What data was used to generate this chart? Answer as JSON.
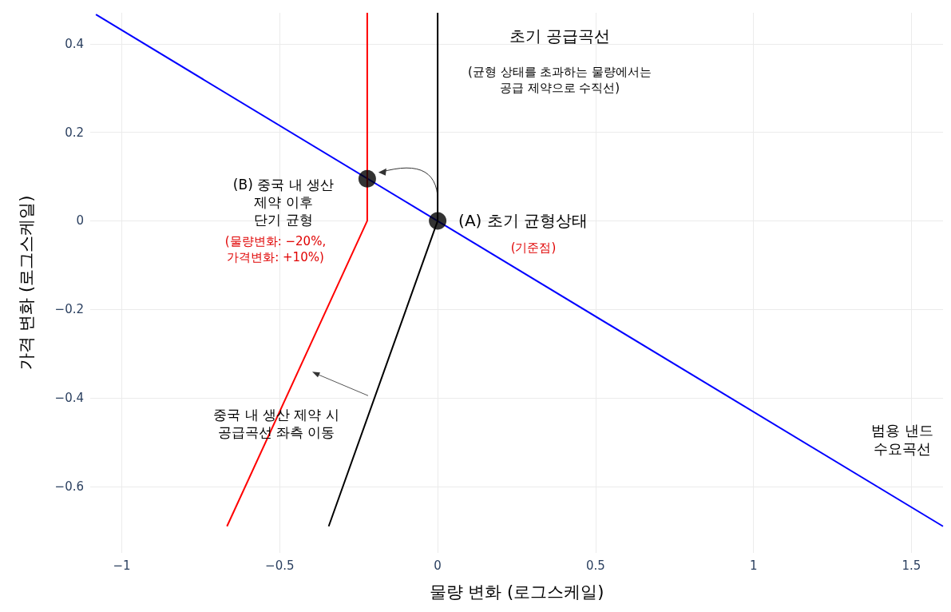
{
  "chart_data": {
    "type": "line",
    "xlabel": "물량 변화 (로그스케일)",
    "ylabel": "가격 변화 (로그스케일)",
    "xlim": [
      -1.1,
      1.6
    ],
    "xticks": [
      -1,
      -0.5,
      0,
      0.5,
      1,
      1.5
    ],
    "ylim": [
      -0.75,
      0.47
    ],
    "yticks": [
      -0.6,
      -0.4,
      -0.2,
      0,
      0.2,
      0.4
    ],
    "grid": true,
    "line_style": "solid",
    "series": [
      {
        "color": "#0000ff",
        "x": [
          -1.082,
          1.6
        ],
        "values": [
          0.466,
          -0.69
        ],
        "marker": "none"
      },
      {
        "color": "#000000",
        "x": [
          -0.345,
          0,
          0
        ],
        "values": [
          -0.69,
          0,
          0.47
        ],
        "marker": "none"
      },
      {
        "color": "#ff0000",
        "x": [
          -0.667,
          -0.223,
          -0.223
        ],
        "values": [
          -0.69,
          0,
          0.47
        ],
        "marker": "none"
      },
      {
        "type": "scatter",
        "color": "#000000",
        "x": [
          0,
          -0.223
        ],
        "values": [
          0,
          0.095
        ],
        "marker": "circle"
      }
    ],
    "annotations": [
      "초기 공급곡선",
      "(균형 상태를 초과하는 물량에서는\n공급 제약으로 수직선)",
      {
        "text": "(A) 초기 균형상태",
        "x": 0,
        "y": 0
      },
      "(기준점)",
      {
        "text": "(B) 중국 내 생산\n제약 이후\n단기 균형",
        "x": -0.223,
        "y": 0.095
      },
      "(물량변화: −20%,\n가격변화: +10%)",
      {
        "text": "중국 내 생산 제약 시\n공급곡선 좌측 이동",
        "x": -0.511,
        "y": -0.458
      },
      "범용 낸드\n수요곡선"
    ]
  }
}
